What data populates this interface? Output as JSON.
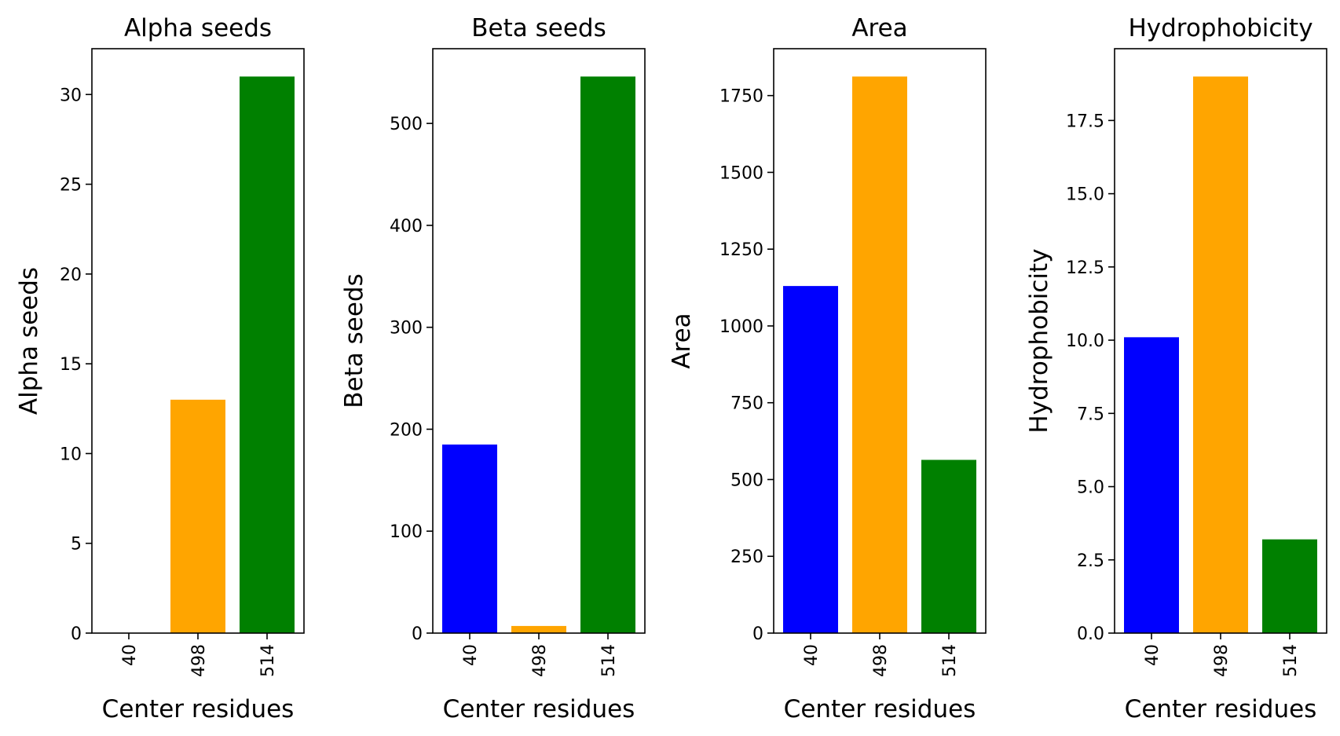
{
  "chart_data": [
    {
      "type": "bar",
      "title": "Alpha seeds",
      "xlabel": "Center residues",
      "ylabel": "Alpha seeds",
      "categories": [
        "40",
        "498",
        "514"
      ],
      "values": [
        0,
        13,
        31
      ],
      "colors": [
        "#0000ff",
        "#ffa500",
        "#008000"
      ],
      "ylim": [
        0,
        32.55
      ],
      "yticks": [
        0,
        5,
        10,
        15,
        20,
        25,
        30
      ],
      "ytick_labels": [
        "0",
        "5",
        "10",
        "15",
        "20",
        "25",
        "30"
      ],
      "grid": false
    },
    {
      "type": "bar",
      "title": "Beta seeds",
      "xlabel": "Center residues",
      "ylabel": "Beta seeds",
      "categories": [
        "40",
        "498",
        "514"
      ],
      "values": [
        185,
        7,
        546
      ],
      "colors": [
        "#0000ff",
        "#ffa500",
        "#008000"
      ],
      "ylim": [
        0,
        573.3
      ],
      "yticks": [
        0,
        100,
        200,
        300,
        400,
        500
      ],
      "ytick_labels": [
        "0",
        "100",
        "200",
        "300",
        "400",
        "500"
      ],
      "grid": false
    },
    {
      "type": "bar",
      "title": "Area",
      "xlabel": "Center residues",
      "ylabel": "Area",
      "categories": [
        "40",
        "498",
        "514"
      ],
      "values": [
        1130,
        1812,
        564
      ],
      "colors": [
        "#0000ff",
        "#ffa500",
        "#008000"
      ],
      "ylim": [
        0,
        1902.6
      ],
      "yticks": [
        0,
        250,
        500,
        750,
        1000,
        1250,
        1500,
        1750
      ],
      "ytick_labels": [
        "0",
        "250",
        "500",
        "750",
        "1000",
        "1250",
        "1500",
        "1750"
      ],
      "grid": false
    },
    {
      "type": "bar",
      "title": "Hydrophobicity",
      "xlabel": "Center residues",
      "ylabel": "Hydrophobicity",
      "categories": [
        "40",
        "498",
        "514"
      ],
      "values": [
        10.1,
        19.0,
        3.2
      ],
      "colors": [
        "#0000ff",
        "#ffa500",
        "#008000"
      ],
      "ylim": [
        0,
        19.95
      ],
      "yticks": [
        0,
        2.5,
        5.0,
        7.5,
        10.0,
        12.5,
        15.0,
        17.5
      ],
      "ytick_labels": [
        "0.0",
        "2.5",
        "5.0",
        "7.5",
        "10.0",
        "12.5",
        "15.0",
        "17.5"
      ],
      "grid": false
    }
  ]
}
